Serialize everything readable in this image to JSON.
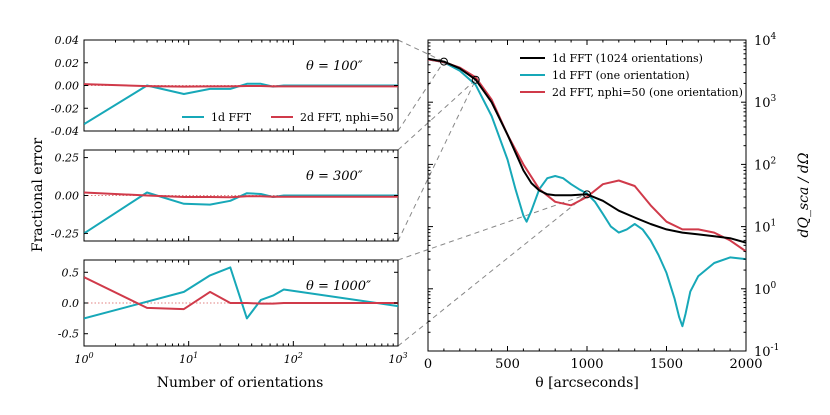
{
  "colors": {
    "black": "#000000",
    "cyan": "#17a8b8",
    "red": "#d03a4a",
    "dashed": "#888888",
    "zero_line": "#e08080"
  },
  "chart_data": [
    {
      "type": "line",
      "title": "",
      "panel": "top-left",
      "annotation": "θ = 100″",
      "xscale": "log",
      "xlim": [
        1,
        1000
      ],
      "ylim": [
        -0.04,
        0.04
      ],
      "yticks": [
        "0.04",
        "0.02",
        "0.00",
        "-0.02",
        "-0.04"
      ],
      "ylabel": "Fractional error",
      "series": [
        {
          "name": "1d FFT",
          "color": "#17a8b8",
          "x": [
            1,
            4,
            9,
            16,
            25,
            36,
            49,
            64,
            81,
            1000
          ],
          "y": [
            -0.034,
            0.0,
            -0.0075,
            -0.003,
            -0.003,
            0.0015,
            0.0015,
            -0.001,
            0.0,
            0.0
          ]
        },
        {
          "name": "2d FFT, nphi=50",
          "color": "#d03a4a",
          "x": [
            1,
            4,
            9,
            16,
            25,
            36,
            49,
            64,
            81,
            1000
          ],
          "y": [
            0.0012,
            -0.0005,
            -0.001,
            -0.0008,
            -0.0008,
            -0.0004,
            -0.0004,
            -0.0008,
            -0.0008,
            -0.0008
          ]
        }
      ],
      "legend": [
        "1d FFT",
        "2d FFT, nphi=50"
      ]
    },
    {
      "type": "line",
      "panel": "middle-left",
      "annotation": "θ = 300″",
      "xscale": "log",
      "xlim": [
        1,
        1000
      ],
      "ylim": [
        -0.3,
        0.3
      ],
      "yticks": [
        "0.25",
        "0.00",
        "-0.25"
      ],
      "series": [
        {
          "name": "1d FFT",
          "color": "#17a8b8",
          "x": [
            1,
            4,
            9,
            16,
            25,
            36,
            49,
            64,
            81,
            1000
          ],
          "y": [
            -0.25,
            0.02,
            -0.055,
            -0.06,
            -0.035,
            0.015,
            0.01,
            -0.01,
            0.0,
            0.0
          ]
        },
        {
          "name": "2d FFT, nphi=50",
          "color": "#d03a4a",
          "x": [
            1,
            4,
            9,
            16,
            25,
            36,
            49,
            64,
            81,
            1000
          ],
          "y": [
            0.02,
            0.0,
            -0.01,
            -0.01,
            -0.012,
            -0.005,
            -0.005,
            -0.008,
            -0.008,
            -0.008
          ]
        }
      ]
    },
    {
      "type": "line",
      "panel": "bottom-left",
      "annotation": "θ = 1000″",
      "xscale": "log",
      "xlim": [
        1,
        1000
      ],
      "ylim": [
        -0.7,
        0.7
      ],
      "yticks": [
        "0.5",
        "0.0",
        "-0.5"
      ],
      "xticks": [
        "10^0",
        "10^1",
        "10^2",
        "10^3"
      ],
      "xlabel": "Number of orientations",
      "series": [
        {
          "name": "1d FFT",
          "color": "#17a8b8",
          "x": [
            1,
            9,
            16,
            25,
            36,
            49,
            64,
            81,
            1000
          ],
          "y": [
            -0.25,
            0.18,
            0.45,
            0.58,
            -0.25,
            0.05,
            0.12,
            0.22,
            -0.05
          ]
        },
        {
          "name": "2d FFT, nphi=50",
          "color": "#d03a4a",
          "x": [
            1,
            4,
            9,
            16,
            25,
            36,
            49,
            64,
            81,
            1000
          ],
          "y": [
            0.42,
            -0.08,
            -0.1,
            0.18,
            0.0,
            0.0,
            -0.01,
            -0.01,
            0.0,
            0.0
          ]
        }
      ]
    },
    {
      "type": "line",
      "panel": "right",
      "xscale": "linear",
      "yscale": "log",
      "xlim": [
        0,
        2000
      ],
      "ylim": [
        0.1,
        10000
      ],
      "xticks": [
        "0",
        "500",
        "1000",
        "1500",
        "2000"
      ],
      "yticks": [
        "10^4",
        "10^3",
        "10^2",
        "10^1",
        "10^0",
        "10^-1"
      ],
      "xlabel": "θ [arcseconds]",
      "ylabel": "dQ_sca / dΩ",
      "markers_x": [
        100,
        300,
        1000
      ],
      "series": [
        {
          "name": "1d FFT (1024 orientations)",
          "color": "#000000",
          "x": [
            0,
            100,
            200,
            300,
            400,
            500,
            600,
            650,
            700,
            750,
            800,
            900,
            1000,
            1100,
            1200,
            1300,
            1400,
            1500,
            1600,
            1700,
            1800,
            1900,
            2000
          ],
          "y": [
            5000,
            4500,
            3500,
            2300,
            1000,
            300,
            80,
            50,
            38,
            33,
            32,
            32,
            33,
            26,
            18,
            14,
            11,
            9,
            8,
            7.5,
            7,
            6.5,
            5.5
          ]
        },
        {
          "name": "1d FFT (one orientation)",
          "color": "#17a8b8",
          "x": [
            0,
            100,
            200,
            300,
            400,
            500,
            550,
            600,
            620,
            650,
            700,
            750,
            800,
            850,
            900,
            950,
            1000,
            1050,
            1100,
            1150,
            1200,
            1250,
            1300,
            1350,
            1400,
            1450,
            1500,
            1550,
            1580,
            1600,
            1620,
            1650,
            1700,
            1800,
            1900,
            2000
          ],
          "y": [
            4900,
            4400,
            3200,
            1900,
            600,
            120,
            40,
            15,
            12,
            18,
            40,
            60,
            65,
            60,
            48,
            40,
            34,
            25,
            16,
            10,
            8,
            9,
            11,
            9,
            6,
            3.5,
            1.8,
            0.7,
            0.35,
            0.25,
            0.4,
            0.9,
            1.6,
            2.6,
            3.2,
            3
          ]
        },
        {
          "name": "2d FFT, nphi=50 (one orientation)",
          "color": "#d03a4a",
          "x": [
            0,
            100,
            200,
            300,
            400,
            500,
            600,
            700,
            800,
            900,
            1000,
            1100,
            1200,
            1300,
            1400,
            1500,
            1600,
            1700,
            1800,
            1900,
            2000
          ],
          "y": [
            4900,
            4400,
            3600,
            2500,
            1100,
            300,
            100,
            40,
            25,
            22,
            30,
            48,
            55,
            45,
            22,
            12,
            9,
            9,
            8,
            6,
            4
          ]
        }
      ],
      "legend": [
        "1d FFT (1024 orientations)",
        "1d FFT (one orientation)",
        "2d FFT, nphi=50 (one orientation)"
      ]
    }
  ]
}
